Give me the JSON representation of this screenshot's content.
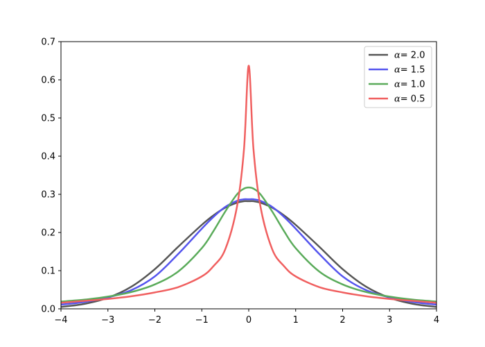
{
  "chart_data": {
    "type": "line",
    "title": "",
    "xlabel": "",
    "ylabel": "",
    "xlim": [
      -4,
      4
    ],
    "ylim": [
      0,
      0.7
    ],
    "x_ticks": [
      -4,
      -3,
      -2,
      -1,
      0,
      1,
      2,
      3,
      4
    ],
    "x_tick_labels": [
      "−4",
      "−3",
      "−2",
      "−1",
      "0",
      "1",
      "2",
      "3",
      "4"
    ],
    "y_ticks": [
      0.0,
      0.1,
      0.2,
      0.3,
      0.4,
      0.5,
      0.6,
      0.7
    ],
    "y_tick_labels": [
      "0.0",
      "0.1",
      "0.2",
      "0.3",
      "0.4",
      "0.5",
      "0.6",
      "0.7"
    ],
    "grid": false,
    "legend_position": "top-right",
    "x": [
      -4,
      -3.5,
      -3,
      -2.5,
      -2,
      -1.5,
      -1,
      -0.75,
      -0.5,
      -0.25,
      -0.1,
      0,
      0.1,
      0.25,
      0.5,
      0.75,
      1,
      1.5,
      2,
      2.5,
      3,
      3.5,
      4
    ],
    "series": [
      {
        "name": "α= 2.0",
        "legend_symbol": "α",
        "legend_value": "= 2.0",
        "color": "#555555",
        "values": [
          0.005,
          0.013,
          0.029,
          0.058,
          0.104,
          0.163,
          0.22,
          0.245,
          0.265,
          0.278,
          0.282,
          0.282,
          0.282,
          0.278,
          0.265,
          0.245,
          0.22,
          0.163,
          0.104,
          0.058,
          0.029,
          0.013,
          0.005
        ]
      },
      {
        "name": "α= 1.5",
        "legend_symbol": "α",
        "legend_value": "= 1.5",
        "color": "#5555ee",
        "values": [
          0.011,
          0.018,
          0.03,
          0.049,
          0.085,
          0.144,
          0.21,
          0.241,
          0.267,
          0.283,
          0.287,
          0.287,
          0.287,
          0.283,
          0.267,
          0.241,
          0.21,
          0.144,
          0.085,
          0.049,
          0.03,
          0.018,
          0.011
        ]
      },
      {
        "name": "α= 1.0",
        "legend_symbol": "α",
        "legend_value": "= 1.0",
        "color": "#5aab5a",
        "values": [
          0.019,
          0.024,
          0.032,
          0.044,
          0.064,
          0.098,
          0.159,
          0.204,
          0.255,
          0.3,
          0.315,
          0.318,
          0.315,
          0.3,
          0.255,
          0.204,
          0.159,
          0.098,
          0.064,
          0.044,
          0.032,
          0.024,
          0.019
        ]
      },
      {
        "name": "α= 0.5",
        "legend_symbol": "α",
        "legend_value": "= 0.5",
        "color": "#f05f5f",
        "values": [
          0.016,
          0.021,
          0.026,
          0.033,
          0.043,
          0.057,
          0.085,
          0.112,
          0.156,
          0.268,
          0.42,
          0.637,
          0.42,
          0.268,
          0.156,
          0.112,
          0.085,
          0.057,
          0.043,
          0.033,
          0.026,
          0.021,
          0.016
        ]
      }
    ]
  }
}
